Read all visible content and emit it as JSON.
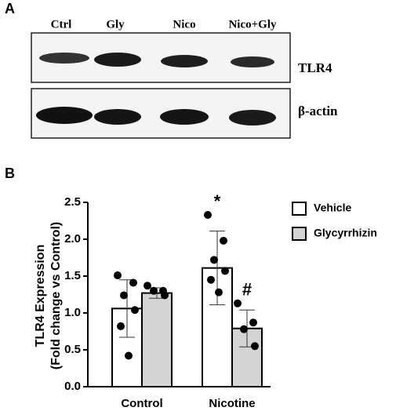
{
  "figure": {
    "panel_a": "A",
    "panel_b": "B",
    "lanes": [
      "Ctrl",
      "Gly",
      "Nico",
      "Nico+Gly"
    ],
    "blots": [
      "TLR4",
      "β-actin"
    ]
  },
  "chart_data": {
    "type": "bar",
    "ylabel": [
      "TLR4 Expression",
      "(Fold change vs Control)"
    ],
    "categories": [
      "Control",
      "Nicotine"
    ],
    "ylim": [
      0,
      2.5
    ],
    "yticks": [
      {
        "value": 0,
        "label": "0.0"
      },
      0.5,
      {
        "value": 1,
        "label": "1.0"
      },
      1.5,
      {
        "value": 2,
        "label": "2.0"
      },
      2.5
    ],
    "series": [
      {
        "name": "Vehicle",
        "color": "#ffffff",
        "values": [
          1.06,
          1.61
        ],
        "errors": [
          0.39,
          0.5
        ],
        "points": [
          [
            1.51,
            1.41,
            1.24,
            1.04,
            0.82,
            0.42
          ],
          [
            2.33,
            1.98,
            1.72,
            1.57,
            1.45,
            1.28
          ]
        ],
        "markers": [
          null,
          "*"
        ]
      },
      {
        "name": "Glycyrrhizin",
        "color": "#d4d4d4",
        "values": [
          1.27,
          0.79
        ],
        "errors": [
          0.07,
          0.25
        ],
        "points": [
          [
            1.37,
            1.3,
            1.3,
            1.24
          ],
          [
            1.13,
            0.87,
            0.78,
            0.55
          ]
        ],
        "markers": [
          null,
          "#"
        ]
      }
    ]
  }
}
